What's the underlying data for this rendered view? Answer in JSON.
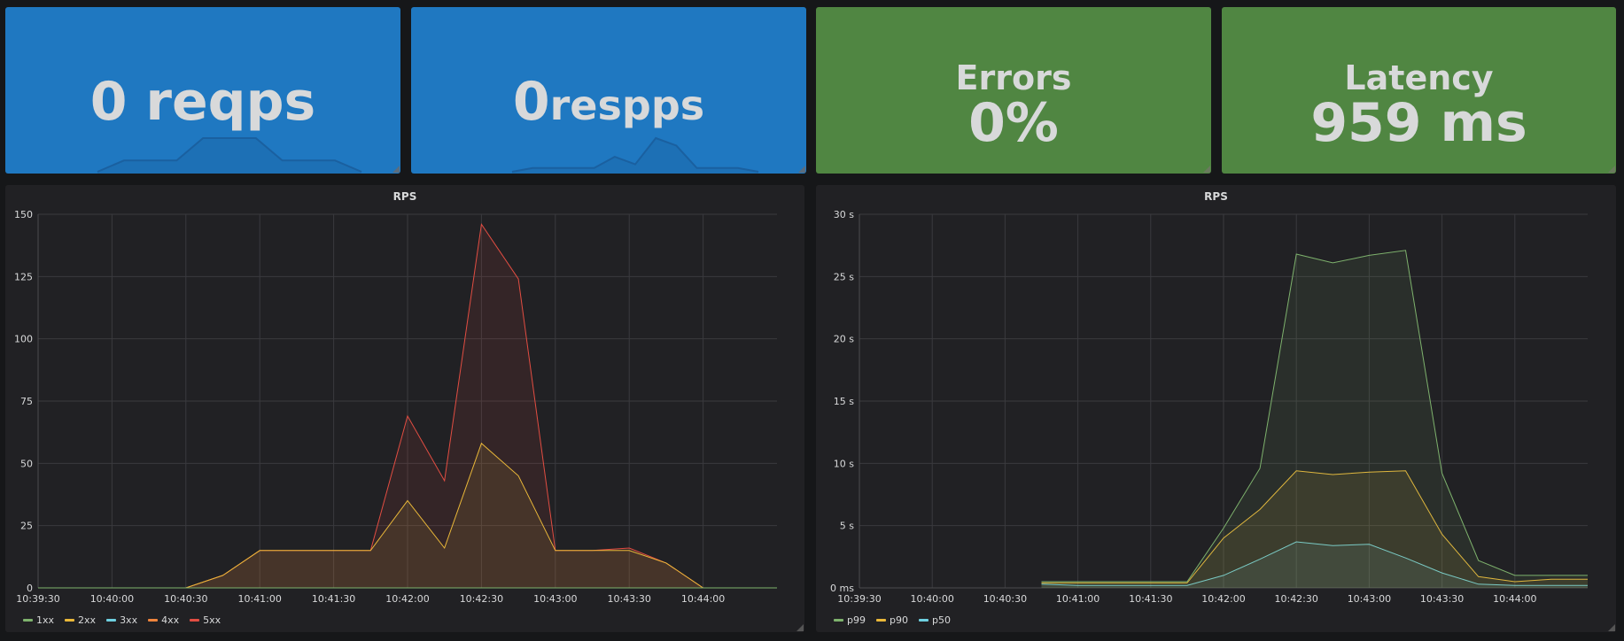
{
  "stats": [
    {
      "id": "reqps",
      "value": "0 reqps",
      "spark": [
        0,
        3,
        3,
        3,
        9,
        9,
        9,
        3,
        3,
        3,
        0
      ]
    },
    {
      "id": "respps",
      "value_num": "0",
      "value_unit": "respps",
      "spark": [
        0,
        1,
        1,
        1,
        1,
        4,
        2,
        9,
        7,
        1,
        1,
        1,
        0
      ]
    },
    {
      "id": "errors",
      "title": "Errors",
      "value": "0%"
    },
    {
      "id": "latency",
      "title": "Latency",
      "value": "959 ms"
    }
  ],
  "panels": [
    {
      "title": "RPS",
      "chart_data": {
        "type": "area",
        "x": [
          "10:39:30",
          "10:39:45",
          "10:40:00",
          "10:40:15",
          "10:40:30",
          "10:40:45",
          "10:41:00",
          "10:41:15",
          "10:41:30",
          "10:41:45",
          "10:42:00",
          "10:42:15",
          "10:42:30",
          "10:42:45",
          "10:43:00",
          "10:43:15",
          "10:43:30",
          "10:43:45",
          "10:44:00",
          "10:44:15",
          "10:44:30"
        ],
        "xticks": [
          "10:39:30",
          "10:40:00",
          "10:40:30",
          "10:41:00",
          "10:41:30",
          "10:42:00",
          "10:42:30",
          "10:43:00",
          "10:43:30",
          "10:44:00"
        ],
        "yticks": [
          "0",
          "25",
          "50",
          "75",
          "100",
          "125",
          "150"
        ],
        "ylim": [
          0,
          150
        ],
        "series": [
          {
            "name": "1xx",
            "color": "#7eb26d",
            "values": [
              0,
              0,
              0,
              0,
              0,
              0,
              0,
              0,
              0,
              0,
              0,
              0,
              0,
              0,
              0,
              0,
              0,
              0,
              0,
              0,
              0
            ]
          },
          {
            "name": "2xx",
            "color": "#eab839",
            "values": [
              0,
              0,
              0,
              0,
              0,
              5,
              15,
              15,
              15,
              15,
              35,
              16,
              58,
              45,
              15,
              15,
              15,
              10,
              0,
              0,
              0
            ]
          },
          {
            "name": "3xx",
            "color": "#6ed0e0",
            "values": [
              0,
              0,
              0,
              0,
              0,
              0,
              0,
              0,
              0,
              0,
              0,
              0,
              0,
              0,
              0,
              0,
              0,
              0,
              0,
              0,
              0
            ]
          },
          {
            "name": "4xx",
            "color": "#ef843c",
            "values": [
              0,
              0,
              0,
              0,
              0,
              0,
              0,
              0,
              0,
              0,
              0,
              0,
              0,
              0,
              0,
              0,
              0,
              0,
              0,
              0,
              0
            ]
          },
          {
            "name": "5xx",
            "color": "#e24d42",
            "values": [
              0,
              0,
              0,
              0,
              0,
              5,
              15,
              15,
              15,
              15,
              69,
              43,
              146,
              124,
              15,
              15,
              16,
              10,
              0,
              0,
              0
            ]
          }
        ]
      }
    },
    {
      "title": "RPS",
      "chart_data": {
        "type": "area",
        "x": [
          "10:39:30",
          "10:40:00",
          "10:40:30",
          "10:40:45",
          "10:41:00",
          "10:41:15",
          "10:41:30",
          "10:41:45",
          "10:42:00",
          "10:42:15",
          "10:42:30",
          "10:42:45",
          "10:43:00",
          "10:43:15",
          "10:43:30",
          "10:43:45",
          "10:44:00",
          "10:44:15",
          "10:44:30"
        ],
        "xticks": [
          "10:39:30",
          "10:40:00",
          "10:40:30",
          "10:41:00",
          "10:41:30",
          "10:42:00",
          "10:42:30",
          "10:43:00",
          "10:43:30",
          "10:44:00"
        ],
        "yticks": [
          "0 ms",
          "5 s",
          "10 s",
          "15 s",
          "20 s",
          "25 s",
          "30 s"
        ],
        "ylim": [
          0,
          30
        ],
        "series": [
          {
            "name": "p99",
            "color": "#7eb26d",
            "values": [
              null,
              null,
              null,
              0.5,
              0.5,
              0.5,
              0.5,
              0.5,
              4.8,
              9.6,
              26.8,
              26.1,
              26.7,
              27.1,
              9.2,
              2.2,
              1.0,
              1.0,
              1.0
            ]
          },
          {
            "name": "p90",
            "color": "#eab839",
            "values": [
              null,
              null,
              null,
              0.4,
              0.4,
              0.4,
              0.4,
              0.4,
              4.0,
              6.3,
              9.4,
              9.1,
              9.3,
              9.4,
              4.3,
              0.9,
              0.5,
              0.7,
              0.7
            ]
          },
          {
            "name": "p50",
            "color": "#6ed0e0",
            "values": [
              null,
              null,
              null,
              0.3,
              0.2,
              0.2,
              0.2,
              0.2,
              1.0,
              2.3,
              3.7,
              3.4,
              3.5,
              2.4,
              1.2,
              0.3,
              0.2,
              0.2,
              0.2
            ]
          }
        ]
      }
    }
  ]
}
